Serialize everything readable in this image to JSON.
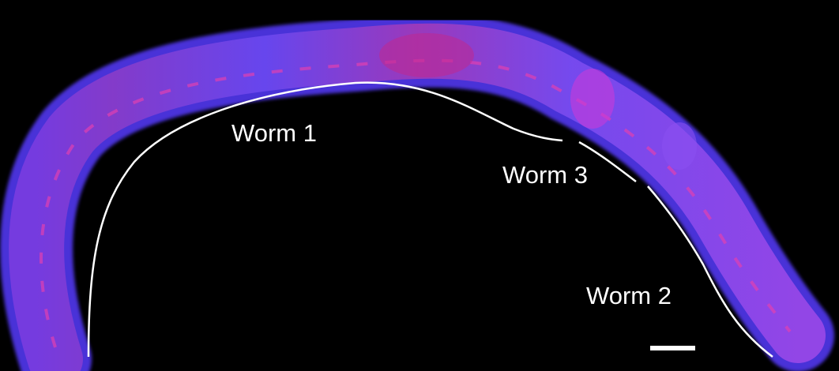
{
  "labels": {
    "worm1": "Worm 1",
    "worm2": "Worm 2",
    "worm3": "Worm 3"
  },
  "colors": {
    "background": "#000000",
    "body_blue": "#5a3cf0",
    "body_magenta": "#d03aa0",
    "annotation_line": "#ffffff",
    "scale_bar": "#ffffff"
  },
  "scale_bar": {
    "present": true
  }
}
